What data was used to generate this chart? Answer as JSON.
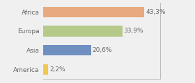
{
  "categories": [
    "Africa",
    "Europa",
    "Asia",
    "America"
  ],
  "values": [
    43.3,
    33.9,
    20.6,
    2.2
  ],
  "labels": [
    "43,3%",
    "33,9%",
    "20,6%",
    "2,2%"
  ],
  "bar_colors": [
    "#e8a97e",
    "#b5c98a",
    "#6e8fc0",
    "#f0c84e"
  ],
  "background_color": "#f0f0f0",
  "xlim": [
    0,
    50
  ],
  "label_fontsize": 6.5,
  "tick_fontsize": 6.5,
  "bar_height": 0.55
}
